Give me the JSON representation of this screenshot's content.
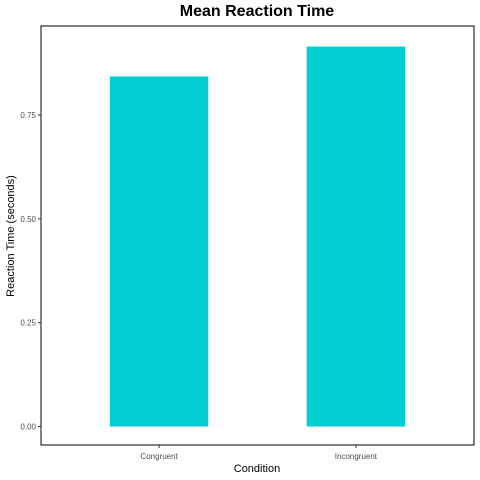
{
  "chart_data": {
    "type": "bar",
    "title": "Mean Reaction Time",
    "xlabel": "Condition",
    "ylabel": "Reaction Time (seconds)",
    "categories": [
      "Congruent",
      "Incongruent"
    ],
    "values": [
      0.843,
      0.915
    ],
    "ylim": [
      -0.0445,
      0.9645
    ],
    "yticks": [
      0.0,
      0.25,
      0.5,
      0.75
    ],
    "ytick_labels": [
      "0.00",
      "0.25",
      "0.50",
      "0.75"
    ],
    "grid": false,
    "bar_color": "#00CED1"
  }
}
